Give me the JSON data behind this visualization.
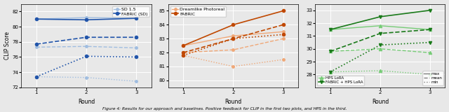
{
  "rounds": [
    1,
    2,
    3
  ],
  "panel1": {
    "ylabel": "CLIP Score",
    "xlabel": "Round",
    "ylim": [
      72,
      83
    ],
    "yticks": [
      72,
      74,
      76,
      78,
      80,
      82
    ],
    "sd15": {
      "max": [
        81.0,
        81.2,
        81.1
      ],
      "mean": [
        77.3,
        77.4,
        77.2
      ],
      "min": [
        73.4,
        73.3,
        72.8
      ]
    },
    "fabric_sd": {
      "max": [
        81.0,
        80.9,
        81.1
      ],
      "mean": [
        77.7,
        78.6,
        78.6
      ],
      "min": [
        73.4,
        76.1,
        76.0
      ]
    },
    "color_sd15": "#a0bde0",
    "color_fabric_sd": "#2255aa",
    "legend": [
      "SD 1.5",
      "FABRIC (SD)"
    ]
  },
  "panel2": {
    "xlabel": "Round",
    "ylim": [
      79.5,
      85.5
    ],
    "yticks": [
      80,
      81,
      82,
      83,
      84,
      85
    ],
    "dreamlike": {
      "max": [
        82.5,
        83.2,
        83.5
      ],
      "mean": [
        82.0,
        82.2,
        83.0
      ],
      "min": [
        81.8,
        81.0,
        81.5
      ]
    },
    "fabric_dreamlike": {
      "max": [
        82.5,
        84.0,
        85.0
      ],
      "mean": [
        82.0,
        83.0,
        84.0
      ],
      "min": [
        81.8,
        83.0,
        83.3
      ]
    },
    "color_dreamlike": "#f0a878",
    "color_fabric_dreamlike": "#c04800",
    "legend": [
      "Dreamlike Photoreal",
      "FABRIC"
    ]
  },
  "panel3": {
    "xlabel": "Round",
    "ylim": [
      27.0,
      33.5
    ],
    "yticks": [
      28,
      29,
      30,
      31,
      32,
      33
    ],
    "hps_lora": {
      "max": [
        31.5,
        31.8,
        31.5
      ],
      "mean": [
        29.8,
        30.0,
        29.7
      ],
      "min": [
        28.2,
        28.3,
        28.0
      ]
    },
    "fabric_hps_lora": {
      "max": [
        31.5,
        32.5,
        33.0
      ],
      "mean": [
        29.8,
        31.2,
        31.5
      ],
      "min": [
        28.2,
        30.3,
        30.5
      ]
    },
    "color_hps_lora": "#77cc77",
    "color_fabric_hps_lora": "#1a7a1a",
    "legend": [
      "HPS LoRA",
      "FABRIC + HPS LoRA"
    ]
  },
  "caption": "Figure 4: Results for our approach and baselines. Positive feedback for CLIP in the first two plots, and HPS in the third.",
  "bg_color": "#e8e8e8"
}
